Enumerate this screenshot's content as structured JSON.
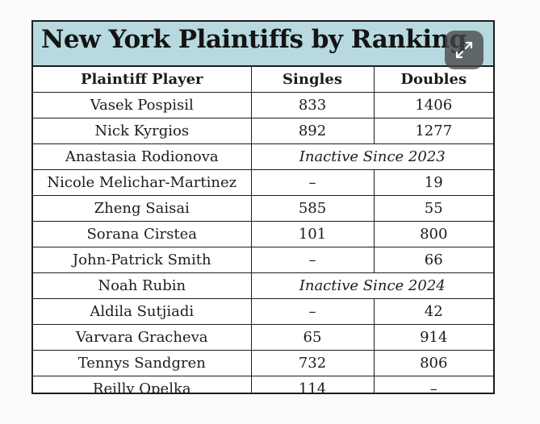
{
  "table": {
    "title": "New York Plaintiffs by Ranking",
    "headers": [
      "Plaintiff Player",
      "Singles",
      "Doubles"
    ],
    "rows": [
      {
        "player": "Vasek Pospisil",
        "singles": "833",
        "doubles": "1406"
      },
      {
        "player": "Nick Kyrgios",
        "singles": "892",
        "doubles": "1277"
      },
      {
        "player": "Anastasia Rodionova",
        "note": "Inactive Since 2023"
      },
      {
        "player": "Nicole Melichar-Martinez",
        "singles": "–",
        "doubles": "19"
      },
      {
        "player": "Zheng Saisai",
        "singles": "585",
        "doubles": "55"
      },
      {
        "player": "Sorana Cirstea",
        "singles": "101",
        "doubles": "800"
      },
      {
        "player": "John-Patrick Smith",
        "singles": "–",
        "doubles": "66"
      },
      {
        "player": "Noah Rubin",
        "note": "Inactive Since 2024"
      },
      {
        "player": "Aldila Sutjiadi",
        "singles": "–",
        "doubles": "42"
      },
      {
        "player": "Varvara Gracheva",
        "singles": "65",
        "doubles": "914"
      },
      {
        "player": "Tennys Sandgren",
        "singles": "732",
        "doubles": "806"
      },
      {
        "player": "Reilly Opelka",
        "singles": "114",
        "doubles": "–"
      }
    ]
  },
  "colors": {
    "title_background": "#b7d9df",
    "border": "#1d1d1d",
    "overlay_button": "#464646"
  },
  "expand_button": {
    "icon": "expand-arrows-icon"
  }
}
